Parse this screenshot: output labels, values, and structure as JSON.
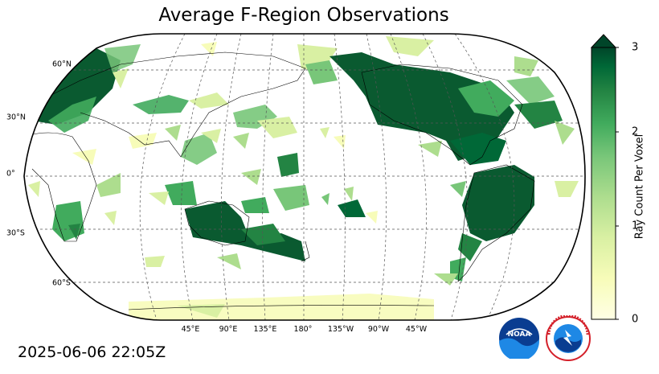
{
  "title": "Average F-Region Observations",
  "timestamp": "2025-06-06 22:05Z",
  "colorbar": {
    "label": "Ray Count Per Voxel",
    "ticks": [
      "0",
      "1",
      "2",
      "3"
    ],
    "min": 0,
    "max": 3,
    "extend": "max",
    "colormap": [
      "#ffffe5",
      "#f7fcb9",
      "#d9f0a3",
      "#addd8e",
      "#78c679",
      "#41ab5d",
      "#238443",
      "#006837",
      "#004529"
    ]
  },
  "map": {
    "projection": "Robinson (Pacific-centered)",
    "gridlines": "dashed",
    "lat_labels": [
      "60°N",
      "30°N",
      "0°",
      "30°S",
      "60°S"
    ],
    "lon_labels": [
      "45°E",
      "90°E",
      "135°E",
      "180°",
      "135°W",
      "90°W",
      "45°W"
    ]
  },
  "logos": {
    "noaa": {
      "text": "NOAA",
      "color": "#0a3d91"
    },
    "nws": {
      "text": "NATIONAL WEATHER SERVICE",
      "color": "#d4202a"
    }
  }
}
